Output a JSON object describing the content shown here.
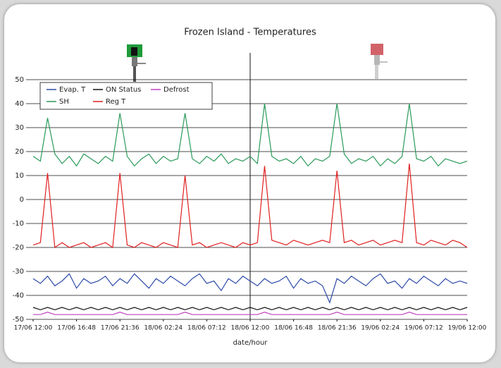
{
  "chart_data": {
    "type": "line",
    "title": "Frozen Island - Temperatures",
    "x_label": "date/hour",
    "x": [
      0,
      0.8,
      1.6,
      2.4,
      3.2,
      4,
      4.8,
      5.6,
      6.4,
      7.2,
      8,
      8.8,
      9.6,
      10.4,
      11.2,
      12,
      12.8,
      13.6,
      14.4,
      15.2,
      16,
      16.8,
      17.6,
      18.4,
      19.2,
      20,
      20.8,
      21.6,
      22.4,
      23.2,
      24,
      24.8,
      25.6,
      26.4,
      27.2,
      28,
      28.8,
      29.6,
      30.4,
      31.2,
      32,
      32.8,
      33.6,
      34.4,
      35.2,
      36,
      36.8,
      37.6,
      38.4,
      39.2,
      40,
      40.8,
      41.6,
      42.4,
      43.2,
      44,
      44.8,
      45.6,
      46.4,
      47.2,
      48
    ],
    "xlim": [
      0,
      48
    ],
    "xticks": [
      {
        "value": 0,
        "label": "17/06 12:00"
      },
      {
        "value": 4.8,
        "label": "17/06 16:48"
      },
      {
        "value": 9.6,
        "label": "17/06 21:36"
      },
      {
        "value": 14.4,
        "label": "18/06 02:24"
      },
      {
        "value": 19.2,
        "label": "18/06 07:12"
      },
      {
        "value": 24,
        "label": "18/06 12:00"
      },
      {
        "value": 28.8,
        "label": "18/06 16:48"
      },
      {
        "value": 33.6,
        "label": "18/06 21:36"
      },
      {
        "value": 38.4,
        "label": "19/06 02:24"
      },
      {
        "value": 43.2,
        "label": "19/06 07:12"
      },
      {
        "value": 48,
        "label": "19/06 12:00"
      }
    ],
    "ylim": [
      -50,
      50
    ],
    "yticks": [
      -50,
      -40,
      -30,
      -20,
      -10,
      0,
      10,
      20,
      30,
      40,
      50
    ],
    "grid": true,
    "legend": "top-left",
    "marker_x": 24,
    "series": [
      {
        "name": "Evap. T",
        "color": "#2d4aa8",
        "values": [
          -33,
          -35,
          -32,
          -36,
          -34,
          -31,
          -37,
          -33,
          -35,
          -34,
          -32,
          -36,
          -33,
          -35,
          -31,
          -34,
          -37,
          -33,
          -35,
          -32,
          -34,
          -36,
          -33,
          -31,
          -35,
          -34,
          -38,
          -33,
          -35,
          -32,
          -34,
          -36,
          -33,
          -35,
          -34,
          -32,
          -37,
          -33,
          -35,
          -34,
          -36,
          -43,
          -33,
          -35,
          -32,
          -34,
          -36,
          -33,
          -31,
          -35,
          -34,
          -37,
          -33,
          -35,
          -32,
          -34,
          -36,
          -33,
          -35,
          -34,
          -35
        ]
      },
      {
        "name": "ON Status",
        "color": "#111111",
        "values": [
          -45,
          -46,
          -45,
          -46,
          -45,
          -46,
          -45,
          -46,
          -45,
          -46,
          -45,
          -46,
          -45,
          -46,
          -45,
          -46,
          -45,
          -46,
          -45,
          -46,
          -45,
          -46,
          -45,
          -46,
          -45,
          -46,
          -45,
          -46,
          -45,
          -46,
          -45,
          -46,
          -45,
          -46,
          -45,
          -46,
          -45,
          -46,
          -45,
          -46,
          -45,
          -46,
          -45,
          -46,
          -45,
          -46,
          -45,
          -46,
          -45,
          -46,
          -45,
          -46,
          -45,
          -46,
          -45,
          -46,
          -45,
          -46,
          -45,
          -46,
          -45
        ]
      },
      {
        "name": "Defrost",
        "color": "#c040c0",
        "values": [
          -48,
          -48,
          -47,
          -48,
          -48,
          -48,
          -48,
          -48,
          -48,
          -48,
          -48,
          -48,
          -47,
          -48,
          -48,
          -48,
          -48,
          -48,
          -48,
          -48,
          -48,
          -47,
          -48,
          -48,
          -48,
          -48,
          -48,
          -48,
          -48,
          -48,
          -48,
          -48,
          -47,
          -48,
          -48,
          -48,
          -48,
          -48,
          -48,
          -48,
          -48,
          -48,
          -47,
          -48,
          -48,
          -48,
          -48,
          -48,
          -48,
          -48,
          -48,
          -48,
          -47,
          -48,
          -48,
          -48,
          -48,
          -48,
          -48,
          -48,
          -48
        ]
      },
      {
        "name": "SH",
        "color": "#2a9a5a",
        "values": [
          18,
          16,
          34,
          19,
          15,
          18,
          14,
          19,
          17,
          15,
          18,
          16,
          36,
          18,
          14,
          17,
          19,
          15,
          18,
          16,
          17,
          36,
          17,
          15,
          18,
          16,
          19,
          15,
          17,
          16,
          18,
          15,
          40,
          18,
          16,
          17,
          15,
          18,
          14,
          17,
          16,
          18,
          40,
          19,
          15,
          17,
          16,
          18,
          14,
          17,
          15,
          18,
          40,
          17,
          16,
          18,
          14,
          17,
          16,
          15,
          16
        ]
      },
      {
        "name": "Reg T",
        "color": "#e02020",
        "values": [
          -19,
          -18,
          11,
          -20,
          -18,
          -20,
          -19,
          -18,
          -20,
          -19,
          -18,
          -20,
          11,
          -19,
          -20,
          -18,
          -19,
          -20,
          -18,
          -19,
          -20,
          10,
          -19,
          -18,
          -20,
          -19,
          -18,
          -19,
          -20,
          -18,
          -19,
          -18,
          14,
          -17,
          -18,
          -19,
          -17,
          -18,
          -19,
          -18,
          -17,
          -18,
          12,
          -18,
          -17,
          -19,
          -18,
          -17,
          -19,
          -18,
          -17,
          -18,
          15,
          -18,
          -19,
          -17,
          -18,
          -19,
          -17,
          -18,
          -20
        ]
      }
    ]
  }
}
